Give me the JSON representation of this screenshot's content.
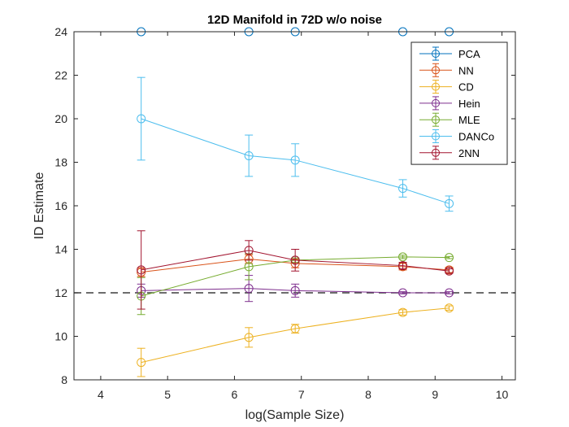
{
  "chart_data": {
    "type": "line",
    "title": "12D Manifold in 72D w/o noise",
    "xlabel": "log(Sample Size)",
    "ylabel": "ID Estimate",
    "xlim": [
      3.6,
      10.2
    ],
    "ylim": [
      8,
      24
    ],
    "xticks": [
      4,
      5,
      6,
      7,
      8,
      9,
      10
    ],
    "yticks": [
      8,
      10,
      12,
      14,
      16,
      18,
      20,
      22,
      24
    ],
    "grid": false,
    "legend_position": "top-right",
    "x": [
      4.605,
      6.215,
      6.908,
      8.517,
      9.21
    ],
    "reference_line": {
      "y": 12,
      "style": "dashed",
      "color": "#3d3d3d"
    },
    "series": [
      {
        "name": "PCA",
        "color": "#0072BD",
        "values": [
          24,
          24,
          24,
          24,
          24
        ],
        "errors": [
          0,
          0,
          0,
          0,
          0
        ]
      },
      {
        "name": "NN",
        "color": "#D95319",
        "values": [
          12.95,
          13.55,
          13.35,
          13.2,
          13.05
        ],
        "errors": [
          0.2,
          0.2,
          0.2,
          0.15,
          0.12
        ]
      },
      {
        "name": "CD",
        "color": "#EDB120",
        "values": [
          8.8,
          9.95,
          10.35,
          11.1,
          11.3
        ],
        "errors": [
          0.65,
          0.45,
          0.2,
          0.12,
          0.1
        ]
      },
      {
        "name": "Hein",
        "color": "#7E2F8E",
        "values": [
          12.1,
          12.2,
          12.1,
          12.0,
          12.0
        ],
        "errors": [
          0.3,
          0.6,
          0.3,
          0.05,
          0.05
        ]
      },
      {
        "name": "MLE",
        "color": "#77AC30",
        "values": [
          11.85,
          13.2,
          13.5,
          13.65,
          13.62
        ],
        "errors": [
          0.85,
          0.6,
          0.1,
          0.08,
          0.05
        ]
      },
      {
        "name": "DANCo",
        "color": "#4DBEEE",
        "values": [
          20.0,
          18.3,
          18.1,
          16.8,
          16.1
        ],
        "errors": [
          1.9,
          0.95,
          0.75,
          0.4,
          0.35
        ]
      },
      {
        "name": "2NN",
        "color": "#A2142F",
        "values": [
          13.05,
          13.95,
          13.5,
          13.25,
          13.0
        ],
        "errors": [
          1.8,
          0.45,
          0.5,
          0.15,
          0.1
        ]
      }
    ]
  }
}
